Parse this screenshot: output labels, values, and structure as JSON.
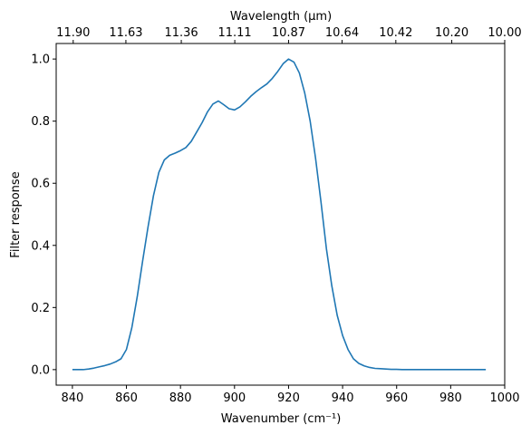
{
  "chart_data": {
    "type": "line",
    "title": "",
    "xlabel": "Wavenumber (cm⁻¹)",
    "ylabel": "Filter response",
    "top_xlabel": "Wavelength (μm)",
    "xlim": [
      834,
      1000
    ],
    "ylim": [
      -0.05,
      1.05
    ],
    "xticks": [
      840,
      860,
      880,
      900,
      920,
      940,
      960,
      980,
      1000
    ],
    "xtick_labels": [
      "840",
      "860",
      "880",
      "900",
      "920",
      "940",
      "960",
      "980",
      "1000"
    ],
    "yticks": [
      0.0,
      0.2,
      0.4,
      0.6,
      0.8,
      1.0
    ],
    "ytick_labels": [
      "0.0",
      "0.2",
      "0.4",
      "0.6",
      "0.8",
      "1.0"
    ],
    "top_ticks": [
      {
        "label": "11.90",
        "wavenumber": 840.3
      },
      {
        "label": "11.63",
        "wavenumber": 859.8
      },
      {
        "label": "11.36",
        "wavenumber": 880.3
      },
      {
        "label": "11.11",
        "wavenumber": 900.1
      },
      {
        "label": "10.87",
        "wavenumber": 920.0
      },
      {
        "label": "10.64",
        "wavenumber": 939.8
      },
      {
        "label": "10.42",
        "wavenumber": 959.7
      },
      {
        "label": "10.20",
        "wavenumber": 980.4
      },
      {
        "label": "10.00",
        "wavenumber": 1000.0
      }
    ],
    "grid": false,
    "series": [
      {
        "name": "",
        "color": "#1f77b4",
        "x": [
          840,
          842,
          844,
          846,
          848,
          850,
          852,
          854,
          856,
          858,
          860,
          862,
          864,
          866,
          868,
          870,
          872,
          874,
          876,
          878,
          880,
          882,
          884,
          886,
          888,
          890,
          892,
          894,
          896,
          898,
          900,
          902,
          904,
          906,
          908,
          910,
          912,
          914,
          916,
          918,
          920,
          922,
          924,
          926,
          928,
          930,
          932,
          934,
          936,
          938,
          940,
          942,
          944,
          946,
          948,
          950,
          952,
          954,
          956,
          958,
          960,
          962,
          964,
          966,
          968,
          970,
          972,
          974,
          976,
          978,
          980,
          982,
          984,
          986,
          988,
          990,
          993
        ],
        "y": [
          0.0,
          0.0,
          0.0,
          0.002,
          0.005,
          0.009,
          0.013,
          0.018,
          0.025,
          0.035,
          0.065,
          0.135,
          0.235,
          0.35,
          0.46,
          0.56,
          0.635,
          0.675,
          0.69,
          0.697,
          0.705,
          0.715,
          0.735,
          0.765,
          0.795,
          0.83,
          0.855,
          0.865,
          0.853,
          0.84,
          0.836,
          0.846,
          0.862,
          0.88,
          0.895,
          0.908,
          0.92,
          0.938,
          0.96,
          0.985,
          1.0,
          0.99,
          0.955,
          0.89,
          0.8,
          0.68,
          0.54,
          0.39,
          0.27,
          0.175,
          0.11,
          0.065,
          0.035,
          0.02,
          0.012,
          0.007,
          0.004,
          0.003,
          0.002,
          0.001,
          0.001,
          0.0,
          0.0,
          0.0,
          0.0,
          0.0,
          0.0,
          0.0,
          0.0,
          0.0,
          0.0,
          0.0,
          0.0,
          0.0,
          0.0,
          0.0,
          0.0
        ]
      }
    ]
  }
}
